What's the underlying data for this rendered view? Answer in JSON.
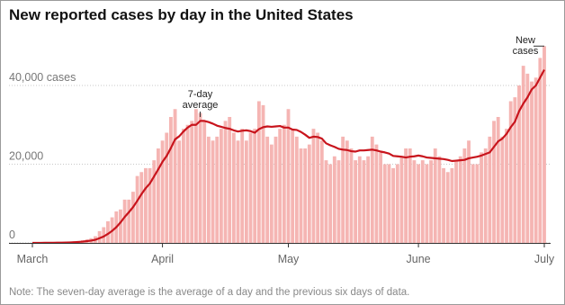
{
  "chart_data": {
    "type": "bar",
    "title": "New reported cases by day in the United States",
    "note": "Note: The seven-day average is the average of a day and the previous six days of data.",
    "categories": [
      "March",
      null,
      null,
      null,
      null,
      null,
      null,
      null,
      null,
      null,
      null,
      null,
      null,
      null,
      null,
      null,
      null,
      null,
      null,
      null,
      null,
      null,
      null,
      null,
      null,
      null,
      null,
      null,
      null,
      null,
      null,
      "April",
      null,
      null,
      null,
      null,
      null,
      null,
      null,
      null,
      null,
      null,
      null,
      null,
      null,
      null,
      null,
      null,
      null,
      null,
      null,
      null,
      null,
      null,
      null,
      null,
      null,
      null,
      null,
      null,
      null,
      "May",
      null,
      null,
      null,
      null,
      null,
      null,
      null,
      null,
      null,
      null,
      null,
      null,
      null,
      null,
      null,
      null,
      null,
      null,
      null,
      null,
      null,
      null,
      null,
      null,
      null,
      null,
      null,
      null,
      null,
      null,
      "June",
      null,
      null,
      null,
      null,
      null,
      null,
      null,
      null,
      null,
      null,
      null,
      null,
      null,
      null,
      null,
      null,
      null,
      null,
      null,
      null,
      null,
      null,
      null,
      null,
      null,
      null,
      null,
      null,
      null,
      "July"
    ],
    "series": [
      {
        "color": "#f5b5b3",
        "values": [
          10,
          5,
          20,
          30,
          60,
          80,
          100,
          120,
          200,
          300,
          400,
          500,
          700,
          900,
          1200,
          1700,
          3000,
          4000,
          5500,
          6500,
          8000,
          8500,
          11000,
          11000,
          13000,
          17000,
          18000,
          19000,
          19000,
          21000,
          24000,
          26000,
          28000,
          32000,
          34000,
          26000,
          29000,
          30000,
          31000,
          34000,
          33000,
          31000,
          27000,
          26000,
          27000,
          29000,
          31000,
          32000,
          28000,
          26000,
          29000,
          26000,
          28000,
          29000,
          36000,
          35000,
          27000,
          25000,
          27000,
          29000,
          30000,
          34000,
          29000,
          27000,
          24000,
          24000,
          25000,
          29000,
          28000,
          26000,
          21000,
          20000,
          22000,
          21000,
          27000,
          26000,
          24000,
          21000,
          22000,
          21000,
          22000,
          27000,
          25000,
          23000,
          20000,
          20000,
          19000,
          20000,
          22000,
          24000,
          24000,
          21000,
          20000,
          21000,
          20000,
          21000,
          24000,
          22000,
          19000,
          18000,
          19000,
          21000,
          22000,
          24000,
          26000,
          20000,
          20000,
          23000,
          24000,
          27000,
          31000,
          32000,
          27000,
          29000,
          36000,
          37000,
          40000,
          45000,
          43000,
          41000,
          42000,
          47000,
          50000
        ]
      },
      {
        "type": "line",
        "color": "#c8141c",
        "values": [
          10,
          10,
          15,
          20,
          30,
          40,
          50,
          60,
          90,
          120,
          170,
          240,
          330,
          450,
          590,
          800,
          1200,
          1640,
          2290,
          3050,
          4000,
          5200,
          6600,
          7800,
          9100,
          10700,
          12400,
          13900,
          15100,
          16900,
          18700,
          20600,
          22100,
          24100,
          26300,
          27100,
          28300,
          29300,
          30000,
          30000,
          31000,
          31000,
          30700,
          30300,
          29800,
          29500,
          29200,
          29000,
          28600,
          28300,
          28500,
          28600,
          28400,
          28000,
          28900,
          29400,
          29600,
          29500,
          29600,
          29700,
          29300,
          29300,
          28800,
          28700,
          28200,
          27500,
          26700,
          27000,
          26900,
          26500,
          25300,
          24800,
          24400,
          23900,
          23700,
          23600,
          23300,
          23200,
          23500,
          23500,
          23600,
          23700,
          23500,
          23200,
          23000,
          22700,
          22100,
          22000,
          21900,
          21700,
          21900,
          22000,
          22200,
          22000,
          21700,
          21600,
          21500,
          21400,
          21300,
          21100,
          20800,
          20900,
          21000,
          21100,
          21500,
          21700,
          21900,
          22200,
          22600,
          23000,
          24400,
          25800,
          26500,
          27700,
          29400,
          30800,
          33500,
          35400,
          37000,
          39000,
          40000,
          42000,
          44000
        ]
      }
    ],
    "annotations": [
      {
        "lines": [
          "7-day",
          "average"
        ],
        "at": 40
      },
      {
        "lines": [
          "New",
          "cases"
        ],
        "at": 122
      }
    ],
    "ylim": [
      0,
      50000
    ],
    "yticks": [
      {
        "value": 0,
        "label": "0"
      },
      {
        "value": 20000,
        "label": "20,000"
      },
      {
        "value": 40000,
        "label": "40,000 cases"
      }
    ],
    "grid": true
  }
}
